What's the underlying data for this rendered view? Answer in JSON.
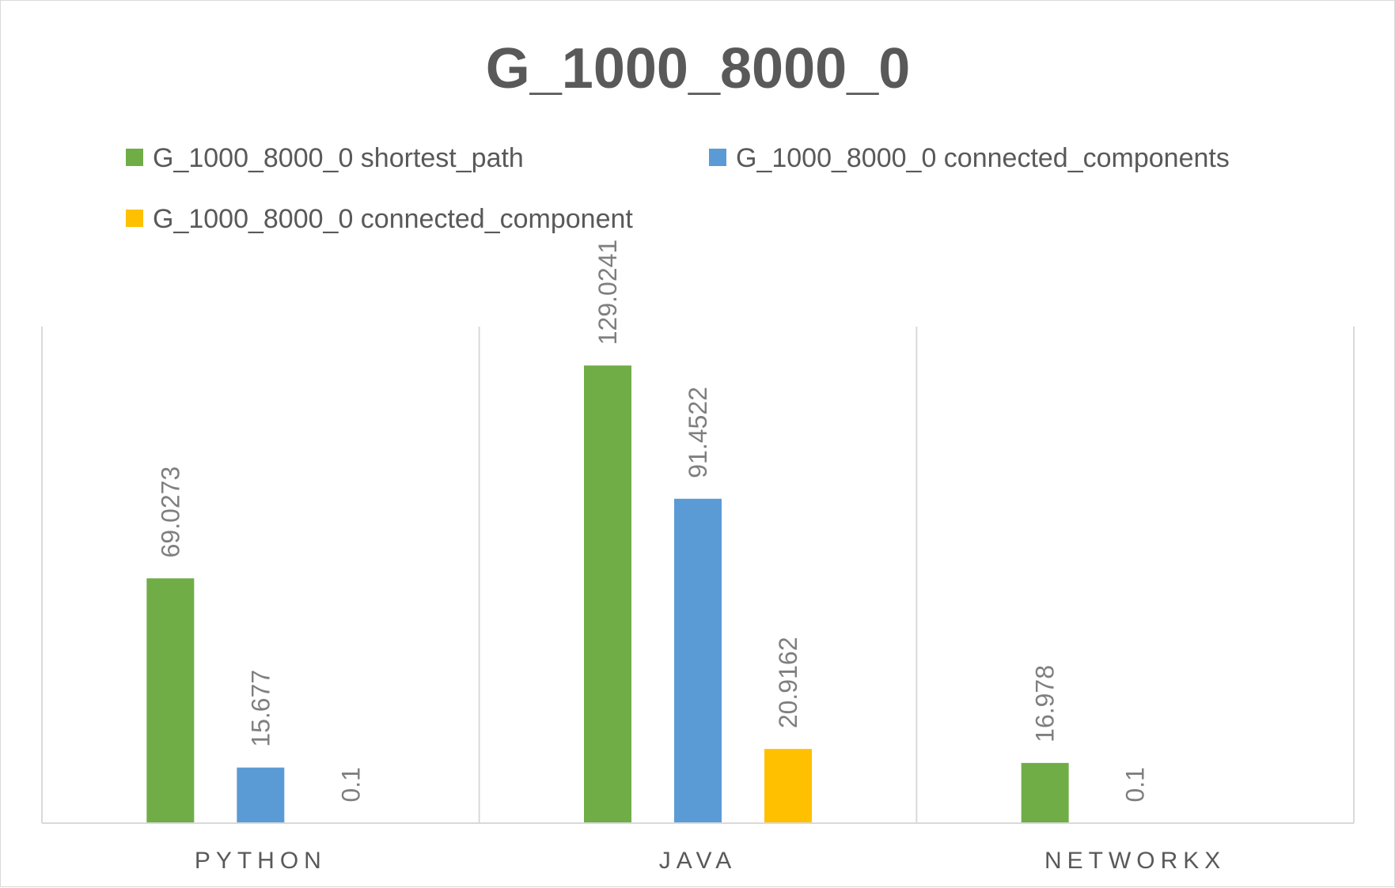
{
  "chart_data": {
    "type": "bar",
    "title": "G_1000_8000_0",
    "categories": [
      "PYTHON",
      "JAVA",
      "NETWORKX"
    ],
    "series": [
      {
        "name": "G_1000_8000_0 shortest_path",
        "color": "#70ad47",
        "values": [
          69.0273,
          129.0241,
          16.978
        ],
        "labels": [
          "69.0273",
          "129.0241",
          "16.978"
        ]
      },
      {
        "name": "G_1000_8000_0 connected_components",
        "color": "#5b9bd5",
        "values": [
          15.677,
          91.4522,
          0.1
        ],
        "labels": [
          "15.677",
          "91.4522",
          "0.1"
        ]
      },
      {
        "name": "G_1000_8000_0 connected_component",
        "color": "#ffc000",
        "values": [
          0.1,
          20.9162,
          null
        ],
        "labels": [
          "0.1",
          "20.9162",
          ""
        ]
      }
    ],
    "ylim": [
      0,
      140
    ],
    "grid": false,
    "legend_position": "top"
  }
}
